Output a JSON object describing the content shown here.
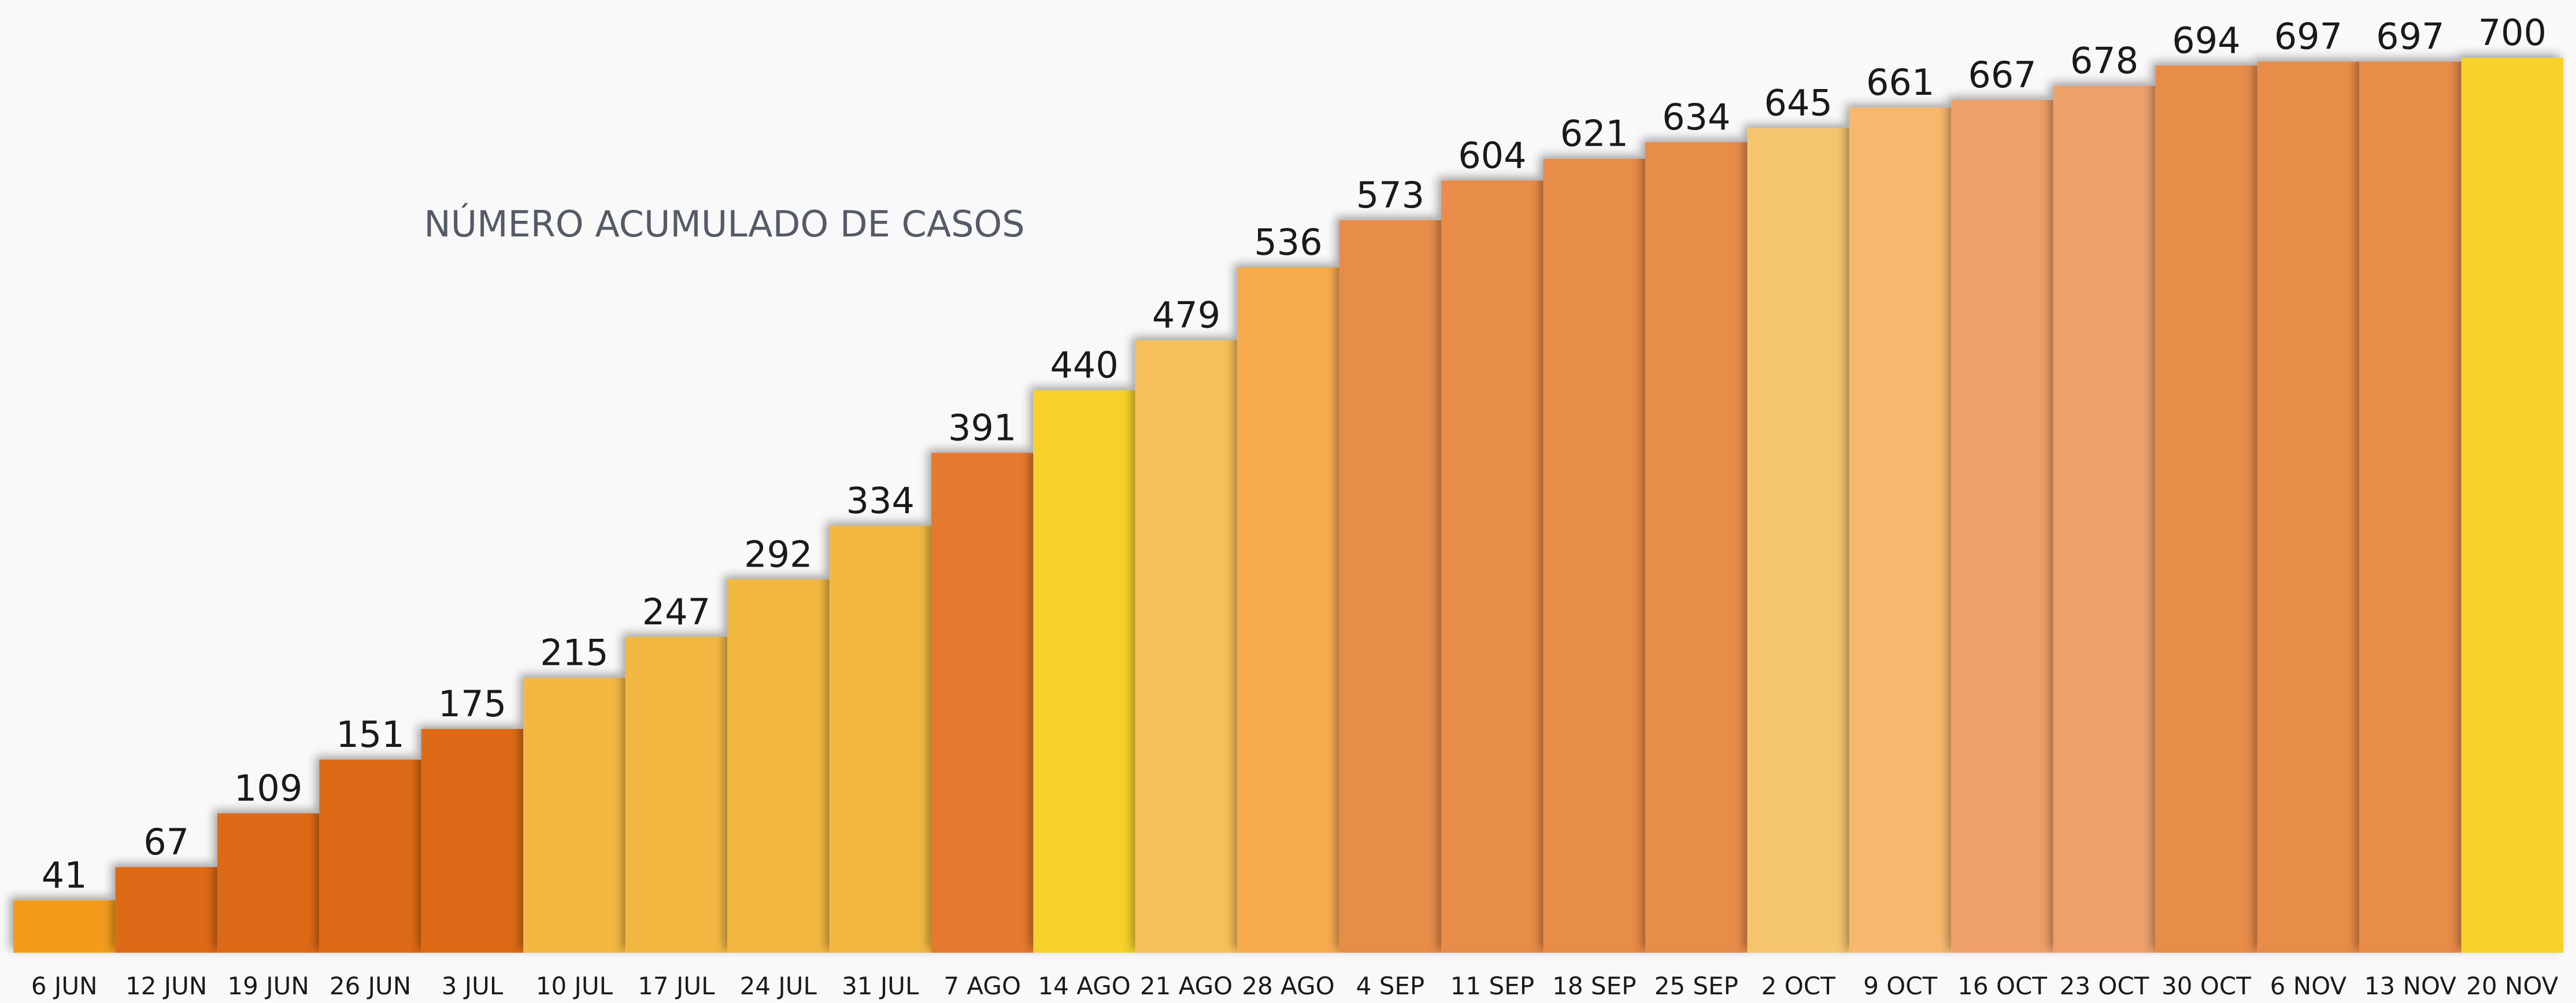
{
  "chart_data": {
    "type": "bar",
    "title": "NÚMERO ACUMULADO DE CASOS",
    "categories": [
      "6 JUN",
      "12 JUN",
      "19 JUN",
      "26 JUN",
      "3 JUL",
      "10 JUL",
      "17 JUL",
      "24 JUL",
      "31 JUL",
      "7 AGO",
      "14 AGO",
      "21 AGO",
      "28 AGO",
      "4 SEP",
      "11 SEP",
      "18 SEP",
      "25 SEP",
      "2 OCT",
      "9 OCT",
      "16 OCT",
      "23 OCT",
      "30 OCT",
      "6 NOV",
      "13 NOV",
      "20 NOV"
    ],
    "values": [
      41,
      67,
      109,
      151,
      175,
      215,
      247,
      292,
      334,
      391,
      440,
      479,
      536,
      573,
      604,
      621,
      634,
      645,
      661,
      667,
      678,
      694,
      697,
      697,
      700
    ],
    "colors": [
      "#f39c1f",
      "#dd6a12",
      "#dd6a12",
      "#dd6a12",
      "#dd6a12",
      "#f2b843",
      "#f2b843",
      "#f2b843",
      "#f2b843",
      "#e57a2e",
      "#f7d22a",
      "#f5c05a",
      "#f7ab50",
      "#e88c4a",
      "#e88c4a",
      "#e88c4a",
      "#e88c4a",
      "#f5c56e",
      "#f7b86e",
      "#eda06a",
      "#eda06a",
      "#e88c4a",
      "#e88c4a",
      "#e88c4a",
      "#f7d22a"
    ],
    "ylim": [
      0,
      700
    ]
  }
}
